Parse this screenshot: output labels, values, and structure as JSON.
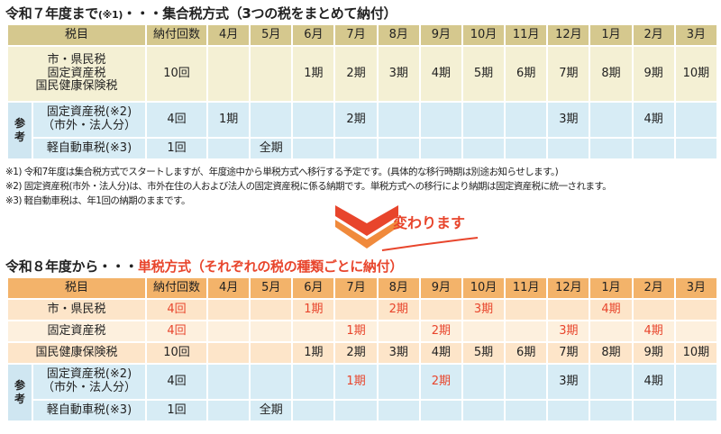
{
  "section1": {
    "title_main": "令和７年度まで",
    "title_note": "(※1)",
    "title_rest": "・・・集合税方式（3つの税をまとめて納付）"
  },
  "section2": {
    "title_main": "令和８年度から・・・",
    "title_red": "単税方式（それぞれの税の種類ごとに納付）"
  },
  "headers": {
    "tax": "税目",
    "count": "納付回数",
    "months": [
      "4月",
      "5月",
      "6月",
      "7月",
      "8月",
      "9月",
      "10月",
      "11月",
      "12月",
      "1月",
      "2月",
      "3月"
    ]
  },
  "table1": {
    "main_row": {
      "tax": [
        "市・県民税",
        "固定資産税",
        "国民健康保険税"
      ],
      "count": "10回",
      "periods": [
        "",
        "",
        "1期",
        "2期",
        "3期",
        "4期",
        "5期",
        "6期",
        "7期",
        "8期",
        "9期",
        "10期"
      ]
    },
    "reference_label": [
      "参",
      "考"
    ],
    "ref_rows": [
      {
        "tax": [
          "固定資産税(※2)",
          "（市外・法人分）"
        ],
        "count": "4回",
        "periods": [
          "1期",
          "",
          "",
          "2期",
          "",
          "",
          "",
          "",
          "3期",
          "",
          "4期",
          ""
        ]
      },
      {
        "tax": [
          "軽自動車税(※3)"
        ],
        "count": "1回",
        "periods": [
          "",
          "全期",
          "",
          "",
          "",
          "",
          "",
          "",
          "",
          "",
          "",
          ""
        ]
      }
    ]
  },
  "notes": [
    "※1) 令和7年度は集合税方式でスタートしますが、年度途中から単税方式へ移行する予定です。(具体的な移行時期は別途お知らせします。)",
    "※2) 固定資産税(市外・法人分)は、市外在住の人および法人の固定資産税に係る納期です。単税方式への移行により納期は固定資産税に統一されます。",
    "※3) 軽自動車税は、年1回の納期のままです。"
  ],
  "change_label": "変わります",
  "table2": {
    "rows": [
      {
        "tax": "市・県民税",
        "count": "4回",
        "count_red": true,
        "periods": [
          "",
          "",
          "1期",
          "",
          "2期",
          "",
          "3期",
          "",
          "",
          "4期",
          "",
          ""
        ],
        "red": true
      },
      {
        "tax": "固定資産税",
        "count": "4回",
        "count_red": true,
        "periods": [
          "",
          "",
          "",
          "1期",
          "",
          "2期",
          "",
          "",
          "3期",
          "",
          "4期",
          ""
        ],
        "red": true
      },
      {
        "tax": "国民健康保険税",
        "count": "10回",
        "count_red": false,
        "periods": [
          "",
          "",
          "1期",
          "2期",
          "3期",
          "4期",
          "5期",
          "6期",
          "7期",
          "8期",
          "9期",
          "10期"
        ],
        "red": false
      }
    ],
    "reference_label": [
      "参",
      "考"
    ],
    "ref_rows": [
      {
        "tax": [
          "固定資産税(※2)",
          "（市外・法人分）"
        ],
        "count": "4回",
        "periods": [
          "",
          "",
          "",
          "1期",
          "",
          "2期",
          "",
          "",
          "3期",
          "",
          "4期",
          ""
        ],
        "red_idx": [
          3,
          5
        ]
      },
      {
        "tax": [
          "軽自動車税(※3)"
        ],
        "count": "1回",
        "periods": [
          "",
          "全期",
          "",
          "",
          "",
          "",
          "",
          "",
          "",
          "",
          "",
          ""
        ],
        "red_idx": []
      }
    ]
  },
  "colors": {
    "accent_red": "#e8452c",
    "header_olive": "#d5c88e",
    "header_orange": "#f3b36a",
    "reference_blue": "#d7ecf5",
    "row_peach": "#fde5c9"
  }
}
